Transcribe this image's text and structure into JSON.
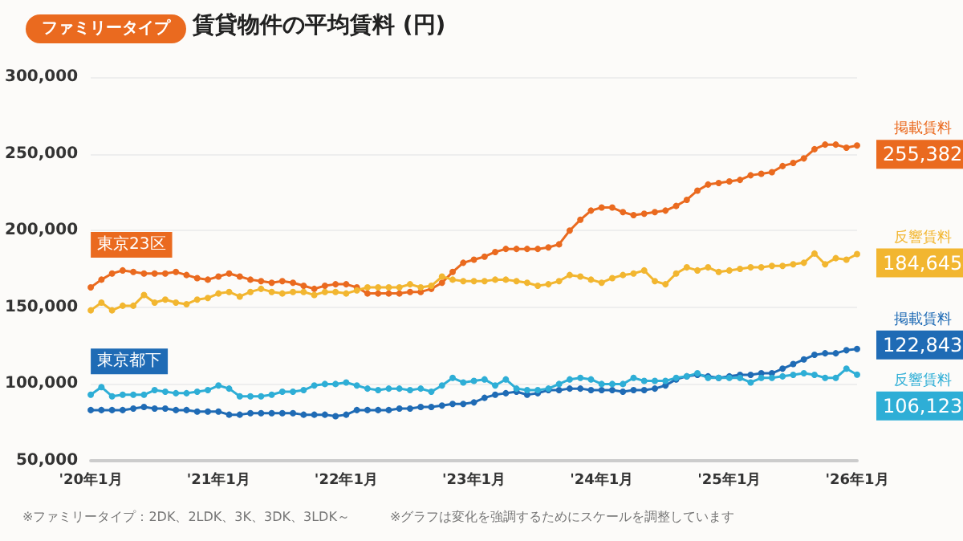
{
  "chart_data": {
    "type": "line",
    "title": "賃貸物件の平均賃料 (円)",
    "subtitle": "ファミリータイプ",
    "categories": [
      "'20年1月",
      null,
      null,
      null,
      null,
      null,
      null,
      null,
      null,
      null,
      null,
      null,
      "'21年1月",
      null,
      null,
      null,
      null,
      null,
      null,
      null,
      null,
      null,
      null,
      null,
      "'22年1月",
      null,
      null,
      null,
      null,
      null,
      null,
      null,
      null,
      null,
      null,
      null,
      "'23年1月",
      null,
      null,
      null,
      null,
      null,
      null,
      null,
      null,
      null,
      null,
      null,
      "'24年1月",
      null,
      null,
      null,
      null,
      null,
      null,
      null,
      null,
      null,
      null,
      null,
      "'25年1月",
      null,
      null,
      null,
      null,
      null,
      null,
      null,
      null,
      null,
      null,
      null,
      "'26年1月"
    ],
    "series": [
      {
        "name": "掲載賃料",
        "color": "#ea6a1f",
        "values": [
          163000,
          168000,
          172000,
          174000,
          173000,
          172000,
          172000,
          172000,
          173000,
          171000,
          169000,
          168000,
          170000,
          172000,
          170000,
          168000,
          167000,
          166000,
          167000,
          166000,
          164000,
          162000,
          164000,
          165000,
          165000,
          163000,
          159000,
          159000,
          159000,
          159000,
          160000,
          160000,
          162000,
          166000,
          173000,
          179000,
          181000,
          183000,
          186000,
          188000,
          188000,
          188000,
          188000,
          189000,
          191000,
          200000,
          207000,
          213000,
          215000,
          215000,
          212000,
          210000,
          211000,
          212000,
          213000,
          216000,
          220000,
          226000,
          230000,
          231000,
          232000,
          233000,
          236000,
          237000,
          238000,
          242000,
          244000,
          247000,
          253000,
          256000,
          256000,
          254000,
          255382
        ],
        "value_labels": [
          null,
          null,
          null,
          null,
          null,
          null,
          null,
          null,
          null,
          null,
          null,
          null,
          null,
          null,
          null,
          null,
          null,
          null,
          null,
          null,
          null,
          null,
          null,
          null,
          null,
          null,
          null,
          null,
          null,
          null,
          null,
          null,
          null,
          null,
          null,
          null,
          null,
          null,
          null,
          null,
          null,
          null,
          null,
          null,
          null,
          null,
          null,
          null,
          null,
          null,
          null,
          null,
          null,
          null,
          null,
          null,
          null,
          null,
          null,
          null,
          null,
          null,
          null,
          null,
          null,
          null,
          null,
          null,
          null,
          null,
          null,
          null,
          "255,382"
        ]
      },
      {
        "name": "反響賃料",
        "color": "#f2b630",
        "values": [
          148000,
          153000,
          148000,
          151000,
          151000,
          158000,
          153000,
          155000,
          153000,
          152000,
          155000,
          156000,
          159000,
          160000,
          157000,
          160000,
          162000,
          160000,
          159000,
          160000,
          160000,
          158000,
          160000,
          160000,
          159000,
          161000,
          163000,
          163000,
          163000,
          163000,
          165000,
          163000,
          164000,
          170000,
          168000,
          167000,
          167000,
          167000,
          168000,
          168000,
          167000,
          166000,
          164000,
          165000,
          167000,
          171000,
          170000,
          168000,
          166000,
          169000,
          171000,
          172000,
          174000,
          167000,
          165000,
          172000,
          176000,
          174000,
          176000,
          173000,
          174000,
          175000,
          176000,
          176000,
          177000,
          177000,
          178000,
          179000,
          185000,
          178000,
          182000,
          181000,
          184645
        ],
        "value_labels": [
          null,
          null,
          null,
          null,
          null,
          null,
          null,
          null,
          null,
          null,
          null,
          null,
          null,
          null,
          null,
          null,
          null,
          null,
          null,
          null,
          null,
          null,
          null,
          null,
          null,
          null,
          null,
          null,
          null,
          null,
          null,
          null,
          null,
          null,
          null,
          null,
          null,
          null,
          null,
          null,
          null,
          null,
          null,
          null,
          null,
          null,
          null,
          null,
          null,
          null,
          null,
          null,
          null,
          null,
          null,
          null,
          null,
          null,
          null,
          null,
          null,
          null,
          null,
          null,
          null,
          null,
          null,
          null,
          null,
          null,
          null,
          null,
          "184,645"
        ]
      },
      {
        "name": "掲載賃料",
        "color": "#1f6bb5",
        "values": [
          83000,
          83000,
          83000,
          83000,
          84000,
          85000,
          84000,
          84000,
          83000,
          83000,
          82000,
          82000,
          82000,
          80000,
          80000,
          81000,
          81000,
          81000,
          81000,
          81000,
          80000,
          80000,
          80000,
          79000,
          80000,
          83000,
          83000,
          83000,
          83000,
          84000,
          84000,
          85000,
          85000,
          86000,
          87000,
          87000,
          88000,
          91000,
          93000,
          94000,
          95000,
          93000,
          94000,
          96000,
          96000,
          97000,
          97000,
          96000,
          96000,
          96000,
          95000,
          96000,
          96000,
          97000,
          99000,
          103000,
          105000,
          106000,
          105000,
          104000,
          105000,
          106000,
          106000,
          107000,
          107000,
          110000,
          113000,
          116000,
          119000,
          120000,
          120000,
          122000,
          122843
        ],
        "value_labels": [
          null,
          null,
          null,
          null,
          null,
          null,
          null,
          null,
          null,
          null,
          null,
          null,
          null,
          null,
          null,
          null,
          null,
          null,
          null,
          null,
          null,
          null,
          null,
          null,
          null,
          null,
          null,
          null,
          null,
          null,
          null,
          null,
          null,
          null,
          null,
          null,
          null,
          null,
          null,
          null,
          null,
          null,
          null,
          null,
          null,
          null,
          null,
          null,
          null,
          null,
          null,
          null,
          null,
          null,
          null,
          null,
          null,
          null,
          null,
          null,
          null,
          null,
          null,
          null,
          null,
          null,
          null,
          null,
          null,
          null,
          null,
          null,
          "122,843"
        ]
      },
      {
        "name": "反響賃料",
        "color": "#2eaed6",
        "values": [
          93000,
          98000,
          92000,
          93000,
          93000,
          93000,
          96000,
          95000,
          94000,
          94000,
          95000,
          96000,
          99000,
          97000,
          92000,
          92000,
          92000,
          93000,
          95000,
          95000,
          96000,
          99000,
          100000,
          100000,
          101000,
          99000,
          97000,
          96000,
          97000,
          97000,
          96000,
          97000,
          95000,
          99000,
          104000,
          101000,
          102000,
          103000,
          99000,
          103000,
          97000,
          96000,
          96000,
          97000,
          100000,
          103000,
          104000,
          103000,
          100000,
          100000,
          100000,
          104000,
          102000,
          102000,
          102000,
          104000,
          105000,
          107000,
          104000,
          104000,
          104000,
          104000,
          101000,
          104000,
          104000,
          105000,
          106000,
          107000,
          106000,
          104000,
          104000,
          110000,
          106123
        ],
        "value_labels": [
          null,
          null,
          null,
          null,
          null,
          null,
          null,
          null,
          null,
          null,
          null,
          null,
          null,
          null,
          null,
          null,
          null,
          null,
          null,
          null,
          null,
          null,
          null,
          null,
          null,
          null,
          null,
          null,
          null,
          null,
          null,
          null,
          null,
          null,
          null,
          null,
          null,
          null,
          null,
          null,
          null,
          null,
          null,
          null,
          null,
          null,
          null,
          null,
          null,
          null,
          null,
          null,
          null,
          null,
          null,
          null,
          null,
          null,
          null,
          null,
          null,
          null,
          null,
          null,
          null,
          null,
          null,
          null,
          null,
          null,
          null,
          null,
          "106,123"
        ]
      }
    ],
    "ylim": [
      50000,
      300000
    ],
    "yticks": [
      {
        "value": 50000,
        "label": "50,000"
      },
      {
        "value": 100000,
        "label": "100,000"
      },
      {
        "value": 150000,
        "label": "150,000"
      },
      {
        "value": 200000,
        "label": "200,000"
      },
      {
        "value": 250000,
        "label": "250,000"
      },
      {
        "value": 300000,
        "label": "300,000"
      }
    ],
    "grid": "y",
    "marker": "circle",
    "line_style": "solid",
    "annotations": [
      "東京23区",
      "東京都下",
      "※ファミリータイプ：2DK、2LDK、3K、3DK、3LDK～",
      "※グラフは変化を強調するためにスケールを調整しています"
    ]
  }
}
